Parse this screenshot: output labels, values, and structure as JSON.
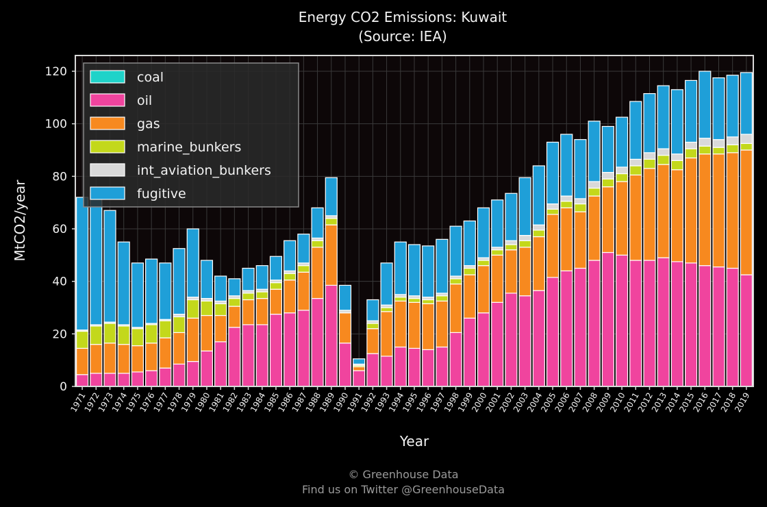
{
  "chart_data": {
    "type": "bar",
    "stacked": true,
    "title": "Energy CO2 Emissions: Kuwait",
    "subtitle": "(Source: IEA)",
    "xlabel": "Year",
    "ylabel": "MtCO2/year",
    "ylim": [
      0,
      126
    ],
    "yticks": [
      0,
      20,
      40,
      60,
      80,
      100,
      120
    ],
    "grid": true,
    "legend_position": "top-left",
    "categories": [
      "1971",
      "1972",
      "1973",
      "1974",
      "1975",
      "1976",
      "1977",
      "1978",
      "1979",
      "1980",
      "1981",
      "1982",
      "1983",
      "1984",
      "1985",
      "1986",
      "1987",
      "1988",
      "1989",
      "1990",
      "1991",
      "1992",
      "1993",
      "1994",
      "1995",
      "1996",
      "1997",
      "1998",
      "1999",
      "2000",
      "2001",
      "2002",
      "2003",
      "2004",
      "2005",
      "2006",
      "2007",
      "2008",
      "2009",
      "2010",
      "2011",
      "2012",
      "2013",
      "2014",
      "2015",
      "2016",
      "2017",
      "2018",
      "2019"
    ],
    "series": [
      {
        "name": "coal",
        "color": "#1fd3c9",
        "values": [
          0,
          0,
          0,
          0,
          0,
          0,
          0,
          0,
          0,
          0,
          0,
          0,
          0,
          0,
          0,
          0,
          0,
          0,
          0,
          0,
          0,
          0,
          0,
          0,
          0,
          0,
          0,
          0,
          0,
          0,
          0,
          0,
          0,
          0,
          0,
          0,
          0,
          0,
          0,
          0,
          0,
          0,
          0,
          0,
          0,
          0,
          0,
          0,
          0
        ]
      },
      {
        "name": "oil",
        "color": "#f0449e",
        "values": [
          4.5,
          5,
          5,
          5,
          5.5,
          6,
          7,
          8.5,
          9.5,
          13.5,
          17,
          22.5,
          23.5,
          23.5,
          27.5,
          28,
          29,
          33.5,
          38.5,
          16.5,
          6,
          12.5,
          11.5,
          15,
          14.5,
          14,
          15,
          20.5,
          26,
          28,
          32,
          35.5,
          34.5,
          36.5,
          41.5,
          44,
          45,
          48,
          51,
          50,
          48,
          48,
          49,
          47.5,
          47,
          46,
          45.5,
          45,
          42.5
        ]
      },
      {
        "name": "gas",
        "color": "#f7891f",
        "values": [
          10,
          11,
          11.5,
          11,
          10,
          10.5,
          11.5,
          12,
          16.5,
          13.5,
          10,
          8,
          9.5,
          10,
          9.5,
          12.5,
          14.5,
          19.5,
          23,
          11.5,
          1.5,
          9.5,
          17,
          17.5,
          17.5,
          17.5,
          17.5,
          18.5,
          16.5,
          18,
          18,
          16.5,
          18.5,
          20.5,
          24,
          24,
          21.5,
          24.5,
          25,
          28,
          32.5,
          35,
          35.5,
          35,
          40,
          42.5,
          43,
          44,
          47.5
        ]
      },
      {
        "name": "marine_bunkers",
        "color": "#c3d81b",
        "values": [
          6.5,
          7,
          7.5,
          7,
          6.5,
          7,
          6.5,
          6,
          7,
          5.5,
          4.5,
          3,
          2.5,
          2.5,
          2.5,
          2.5,
          2.5,
          2.5,
          2.5,
          0,
          0.5,
          2,
          1.5,
          1.5,
          1.5,
          1.5,
          2,
          2,
          2.5,
          2,
          2,
          2,
          2.5,
          2.5,
          2,
          2.5,
          3,
          3,
          3,
          3,
          3.5,
          3.5,
          3.5,
          3.5,
          3.5,
          3,
          2.5,
          3,
          2.5
        ]
      },
      {
        "name": "int_aviation_bunkers",
        "color": "#d9d9d9",
        "values": [
          0.5,
          0.5,
          0.5,
          0.5,
          0.5,
          0.5,
          0.5,
          1,
          1,
          1,
          1,
          1,
          1,
          1,
          1,
          1,
          1,
          1,
          1,
          1,
          0.5,
          1,
          1,
          1,
          1,
          1,
          1,
          1,
          1,
          1,
          1,
          1.5,
          2,
          2,
          2,
          2,
          2,
          2.5,
          2.5,
          2.5,
          2.5,
          2.5,
          2.5,
          2.5,
          2.5,
          3,
          3,
          3,
          3.5
        ]
      },
      {
        "name": "fugitive",
        "color": "#1f9fd8",
        "values": [
          50.5,
          50,
          42.5,
          31.5,
          24.5,
          24.5,
          21.5,
          25,
          26,
          14.5,
          9.5,
          6.5,
          8.5,
          9,
          9,
          11.5,
          11,
          11.5,
          14.5,
          9.5,
          2,
          8,
          16,
          20,
          19.5,
          19.5,
          20.5,
          19,
          17,
          19,
          18,
          18,
          22,
          22.5,
          23.5,
          23.5,
          22.5,
          23,
          17.5,
          19,
          22,
          22.5,
          24,
          24.5,
          23.5,
          25.5,
          23.5,
          23.5,
          23.5
        ]
      }
    ]
  },
  "footer": {
    "line1": "© Greenhouse Data",
    "line2": "Find us on Twitter @GreenhouseData"
  }
}
